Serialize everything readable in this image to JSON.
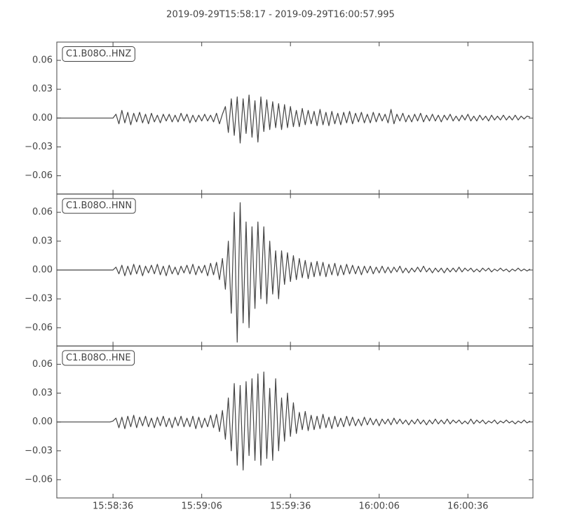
{
  "chart_data": {
    "type": "line",
    "subplots": true,
    "title": "2019-09-29T15:58:17  -  2019-09-29T16:00:57.995",
    "x": [
      0,
      1,
      2,
      3,
      4,
      5,
      6,
      7,
      8,
      9,
      10,
      11,
      12,
      13,
      14,
      15,
      16,
      17,
      18,
      19,
      20,
      21,
      22,
      23,
      24,
      25,
      26,
      27,
      28,
      29,
      30,
      31,
      32,
      33,
      34,
      35,
      36,
      37,
      38,
      39,
      40,
      41,
      42,
      43,
      44,
      45,
      46,
      47,
      48,
      49,
      50,
      51,
      52,
      53,
      54,
      55,
      56,
      57,
      58,
      59,
      60,
      61,
      62,
      63,
      64,
      65,
      66,
      67,
      68,
      69,
      70,
      71,
      72,
      73,
      74,
      75,
      76,
      77,
      78,
      79,
      80,
      81,
      82,
      83,
      84,
      85,
      86,
      87,
      88,
      89,
      90,
      91,
      92,
      93,
      94,
      95,
      96,
      97,
      98,
      99,
      100,
      101,
      102,
      103,
      104,
      105,
      106,
      107,
      108,
      109,
      110,
      111,
      112,
      113,
      114,
      115,
      116,
      117,
      118,
      119,
      120,
      121,
      122,
      123,
      124,
      125,
      126,
      127,
      128,
      129,
      130,
      131,
      132,
      133,
      134,
      135,
      136,
      137,
      138,
      139,
      140,
      141,
      142,
      143,
      144,
      145,
      146,
      147,
      148,
      149,
      150,
      151,
      152,
      153,
      154,
      155,
      156,
      157,
      158,
      159,
      160
    ],
    "xlim": [
      0,
      160.995
    ],
    "xticks": [
      {
        "value": 19,
        "label": "15:58:36"
      },
      {
        "value": 49,
        "label": "15:59:06"
      },
      {
        "value": 79,
        "label": "15:59:36"
      },
      {
        "value": 109,
        "label": "16:00:06"
      },
      {
        "value": 139,
        "label": "16:00:36"
      }
    ],
    "ylim": [
      -0.079,
      0.079
    ],
    "yticks": [
      0.06,
      0.03,
      {
        "value": 0,
        "label": "0.00"
      },
      {
        "value": -0.03,
        "label": "−0.03"
      },
      {
        "value": -0.06,
        "label": "−0.06"
      }
    ],
    "series": [
      {
        "name": "C1.B08O..HNZ",
        "color": "#444444",
        "values": [
          0,
          0,
          0,
          0,
          0,
          0,
          0,
          0,
          0,
          0,
          0,
          0,
          0,
          0,
          0,
          0,
          0,
          0,
          0,
          0,
          0.004,
          -0.006,
          0.008,
          -0.005,
          0.006,
          -0.007,
          0.005,
          -0.004,
          0.006,
          -0.005,
          0.004,
          -0.006,
          0.005,
          -0.004,
          0.003,
          -0.005,
          0.004,
          -0.003,
          0.004,
          -0.004,
          0.003,
          -0.004,
          0.005,
          -0.003,
          0.004,
          -0.005,
          0.003,
          -0.004,
          0.003,
          -0.003,
          0.004,
          -0.003,
          0.003,
          -0.004,
          0.005,
          -0.006,
          0.004,
          0.012,
          -0.015,
          0.02,
          -0.018,
          0.022,
          -0.026,
          0.02,
          -0.016,
          0.024,
          -0.02,
          0.018,
          -0.025,
          0.022,
          -0.014,
          0.019,
          -0.012,
          0.017,
          -0.01,
          0.015,
          -0.012,
          0.014,
          -0.01,
          0.012,
          -0.009,
          0.008,
          -0.009,
          0.01,
          -0.007,
          0.008,
          -0.006,
          0.007,
          -0.008,
          0.009,
          -0.007,
          0.006,
          -0.008,
          0.007,
          -0.006,
          0.005,
          -0.007,
          0.006,
          -0.005,
          0.007,
          -0.006,
          0.005,
          -0.004,
          0.006,
          -0.005,
          0.004,
          -0.005,
          0.006,
          -0.004,
          0.005,
          -0.003,
          0.004,
          -0.005,
          0.009,
          -0.006,
          0.004,
          -0.003,
          0.005,
          -0.004,
          0.003,
          -0.004,
          0.004,
          -0.003,
          0.005,
          -0.004,
          0.003,
          -0.003,
          0.004,
          -0.003,
          0.003,
          -0.004,
          0.003,
          -0.002,
          0.004,
          -0.003,
          0.002,
          -0.003,
          0.003,
          -0.002,
          0.004,
          -0.003,
          0.002,
          -0.003,
          0.003,
          -0.002,
          0.002,
          -0.003,
          0.003,
          -0.002,
          0.002,
          -0.002,
          0.003,
          -0.002,
          0.002,
          -0.002,
          0.003,
          -0.002,
          0.002,
          -0.001,
          0.002,
          0.001
        ]
      },
      {
        "name": "C1.B08O..HNN",
        "color": "#444444",
        "values": [
          0,
          0,
          0,
          0,
          0,
          0,
          0,
          0,
          0,
          0,
          0,
          0,
          0,
          0,
          0,
          0,
          0,
          0,
          0,
          0,
          0.003,
          -0.004,
          0.005,
          -0.006,
          0.004,
          -0.005,
          0.006,
          -0.004,
          0.005,
          -0.006,
          0.004,
          -0.003,
          0.005,
          -0.004,
          0.006,
          -0.005,
          0.004,
          -0.006,
          0.005,
          -0.004,
          0.003,
          -0.005,
          0.004,
          -0.003,
          0.005,
          -0.004,
          0.006,
          -0.005,
          0.004,
          -0.003,
          0.005,
          -0.006,
          0.007,
          -0.005,
          0.008,
          -0.01,
          0.012,
          -0.02,
          0.03,
          -0.045,
          0.06,
          -0.075,
          0.07,
          -0.055,
          0.05,
          -0.06,
          0.045,
          -0.04,
          0.05,
          -0.03,
          0.045,
          -0.035,
          0.03,
          -0.025,
          0.02,
          -0.03,
          0.02,
          -0.015,
          0.018,
          -0.012,
          0.015,
          -0.01,
          0.012,
          -0.008,
          0.01,
          -0.009,
          0.008,
          -0.007,
          0.009,
          -0.006,
          0.008,
          -0.007,
          0.006,
          -0.005,
          0.007,
          -0.006,
          0.005,
          -0.005,
          0.006,
          -0.004,
          0.005,
          -0.004,
          0.004,
          -0.005,
          0.004,
          -0.003,
          0.004,
          -0.004,
          0.003,
          -0.003,
          0.004,
          -0.003,
          0.003,
          -0.003,
          0.003,
          -0.002,
          0.004,
          -0.003,
          0.002,
          -0.003,
          0.002,
          -0.002,
          0.003,
          -0.002,
          0.004,
          -0.002,
          0.002,
          -0.003,
          0.002,
          -0.002,
          0.002,
          -0.003,
          0.002,
          -0.002,
          0.002,
          -0.002,
          0.003,
          -0.002,
          0.002,
          -0.001,
          0.002,
          -0.002,
          0.001,
          -0.002,
          0.002,
          -0.001,
          0.002,
          -0.002,
          0.001,
          -0.001,
          0.002,
          -0.001,
          0.001,
          -0.002,
          0.001,
          -0.001,
          0.002,
          -0.001,
          0.001,
          -0.001,
          0.001
        ]
      },
      {
        "name": "C1.B08O..HNE",
        "color": "#444444",
        "values": [
          0,
          0,
          0,
          0,
          0,
          0,
          0,
          0,
          0,
          0,
          0,
          0,
          0,
          0,
          0,
          0,
          0,
          0,
          0,
          0.001,
          0.004,
          -0.006,
          0.005,
          -0.007,
          0.006,
          -0.005,
          0.007,
          -0.006,
          0.005,
          -0.004,
          0.006,
          -0.005,
          0.004,
          -0.006,
          0.005,
          -0.004,
          0.006,
          -0.005,
          0.004,
          -0.006,
          0.005,
          -0.004,
          0.006,
          -0.005,
          0.004,
          -0.005,
          0.006,
          -0.007,
          0.005,
          -0.006,
          0.004,
          -0.005,
          0.007,
          -0.006,
          0.008,
          -0.01,
          0.012,
          -0.018,
          0.025,
          -0.03,
          0.04,
          -0.045,
          0.038,
          -0.05,
          0.042,
          -0.035,
          0.045,
          -0.04,
          0.05,
          -0.045,
          0.052,
          -0.038,
          0.035,
          -0.04,
          0.045,
          -0.03,
          0.025,
          -0.02,
          0.03,
          -0.015,
          0.02,
          -0.012,
          0.01,
          -0.008,
          0.011,
          -0.009,
          0.007,
          -0.008,
          0.006,
          -0.007,
          0.008,
          -0.006,
          0.005,
          -0.007,
          0.006,
          -0.005,
          0.004,
          -0.005,
          0.006,
          -0.004,
          0.005,
          -0.004,
          0.003,
          -0.004,
          0.005,
          -0.003,
          0.004,
          -0.003,
          0.003,
          -0.004,
          0.003,
          -0.002,
          0.003,
          -0.003,
          0.004,
          -0.002,
          0.003,
          -0.002,
          0.002,
          -0.003,
          0.002,
          -0.002,
          0.003,
          -0.002,
          0.002,
          -0.003,
          0.002,
          -0.002,
          0.003,
          -0.002,
          0.002,
          -0.002,
          0.003,
          -0.002,
          0.002,
          -0.001,
          0.002,
          -0.002,
          0.001,
          -0.002,
          0.003,
          -0.002,
          0.002,
          -0.001,
          0.002,
          -0.002,
          0.001,
          -0.001,
          0.002,
          -0.002,
          0.001,
          -0.001,
          0.002,
          -0.001,
          0.001,
          -0.002,
          0.001,
          -0.001,
          0.002,
          -0.001,
          0.001
        ]
      }
    ]
  }
}
